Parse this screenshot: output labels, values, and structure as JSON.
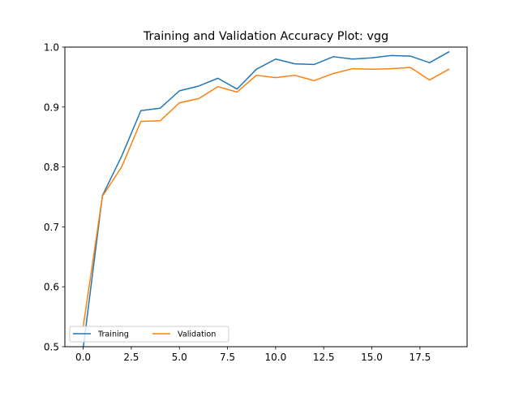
{
  "chart_data": {
    "type": "line",
    "title": "Training and Validation Accuracy Plot: vgg",
    "xlabel": "",
    "ylabel": "",
    "xlim": [
      -0.95,
      19.95
    ],
    "ylim": [
      0.5,
      1.0
    ],
    "xticks": [
      0.0,
      2.5,
      5.0,
      7.5,
      10.0,
      12.5,
      15.0,
      17.5
    ],
    "xtick_labels": [
      "0.0",
      "2.5",
      "5.0",
      "7.5",
      "10.0",
      "12.5",
      "15.0",
      "17.5"
    ],
    "yticks": [
      0.5,
      0.6,
      0.7,
      0.8,
      0.9,
      1.0
    ],
    "ytick_labels": [
      "0.5",
      "0.6",
      "0.7",
      "0.8",
      "0.9",
      "1.0"
    ],
    "grid": false,
    "legend_position": "lower-left",
    "x": [
      0,
      1,
      2,
      3,
      4,
      5,
      6,
      7,
      8,
      9,
      10,
      11,
      12,
      13,
      14,
      15,
      16,
      17,
      18,
      19
    ],
    "series": [
      {
        "name": "Training",
        "color": "#1f77b4",
        "values": [
          0.497,
          0.752,
          0.818,
          0.894,
          0.898,
          0.927,
          0.935,
          0.948,
          0.93,
          0.963,
          0.98,
          0.972,
          0.971,
          0.984,
          0.98,
          0.982,
          0.986,
          0.985,
          0.974,
          0.992
        ]
      },
      {
        "name": "Validation",
        "color": "#ff7f0e",
        "values": [
          0.533,
          0.751,
          0.8,
          0.876,
          0.877,
          0.907,
          0.914,
          0.934,
          0.925,
          0.953,
          0.949,
          0.953,
          0.944,
          0.956,
          0.964,
          0.963,
          0.964,
          0.966,
          0.945,
          0.963
        ]
      }
    ]
  }
}
